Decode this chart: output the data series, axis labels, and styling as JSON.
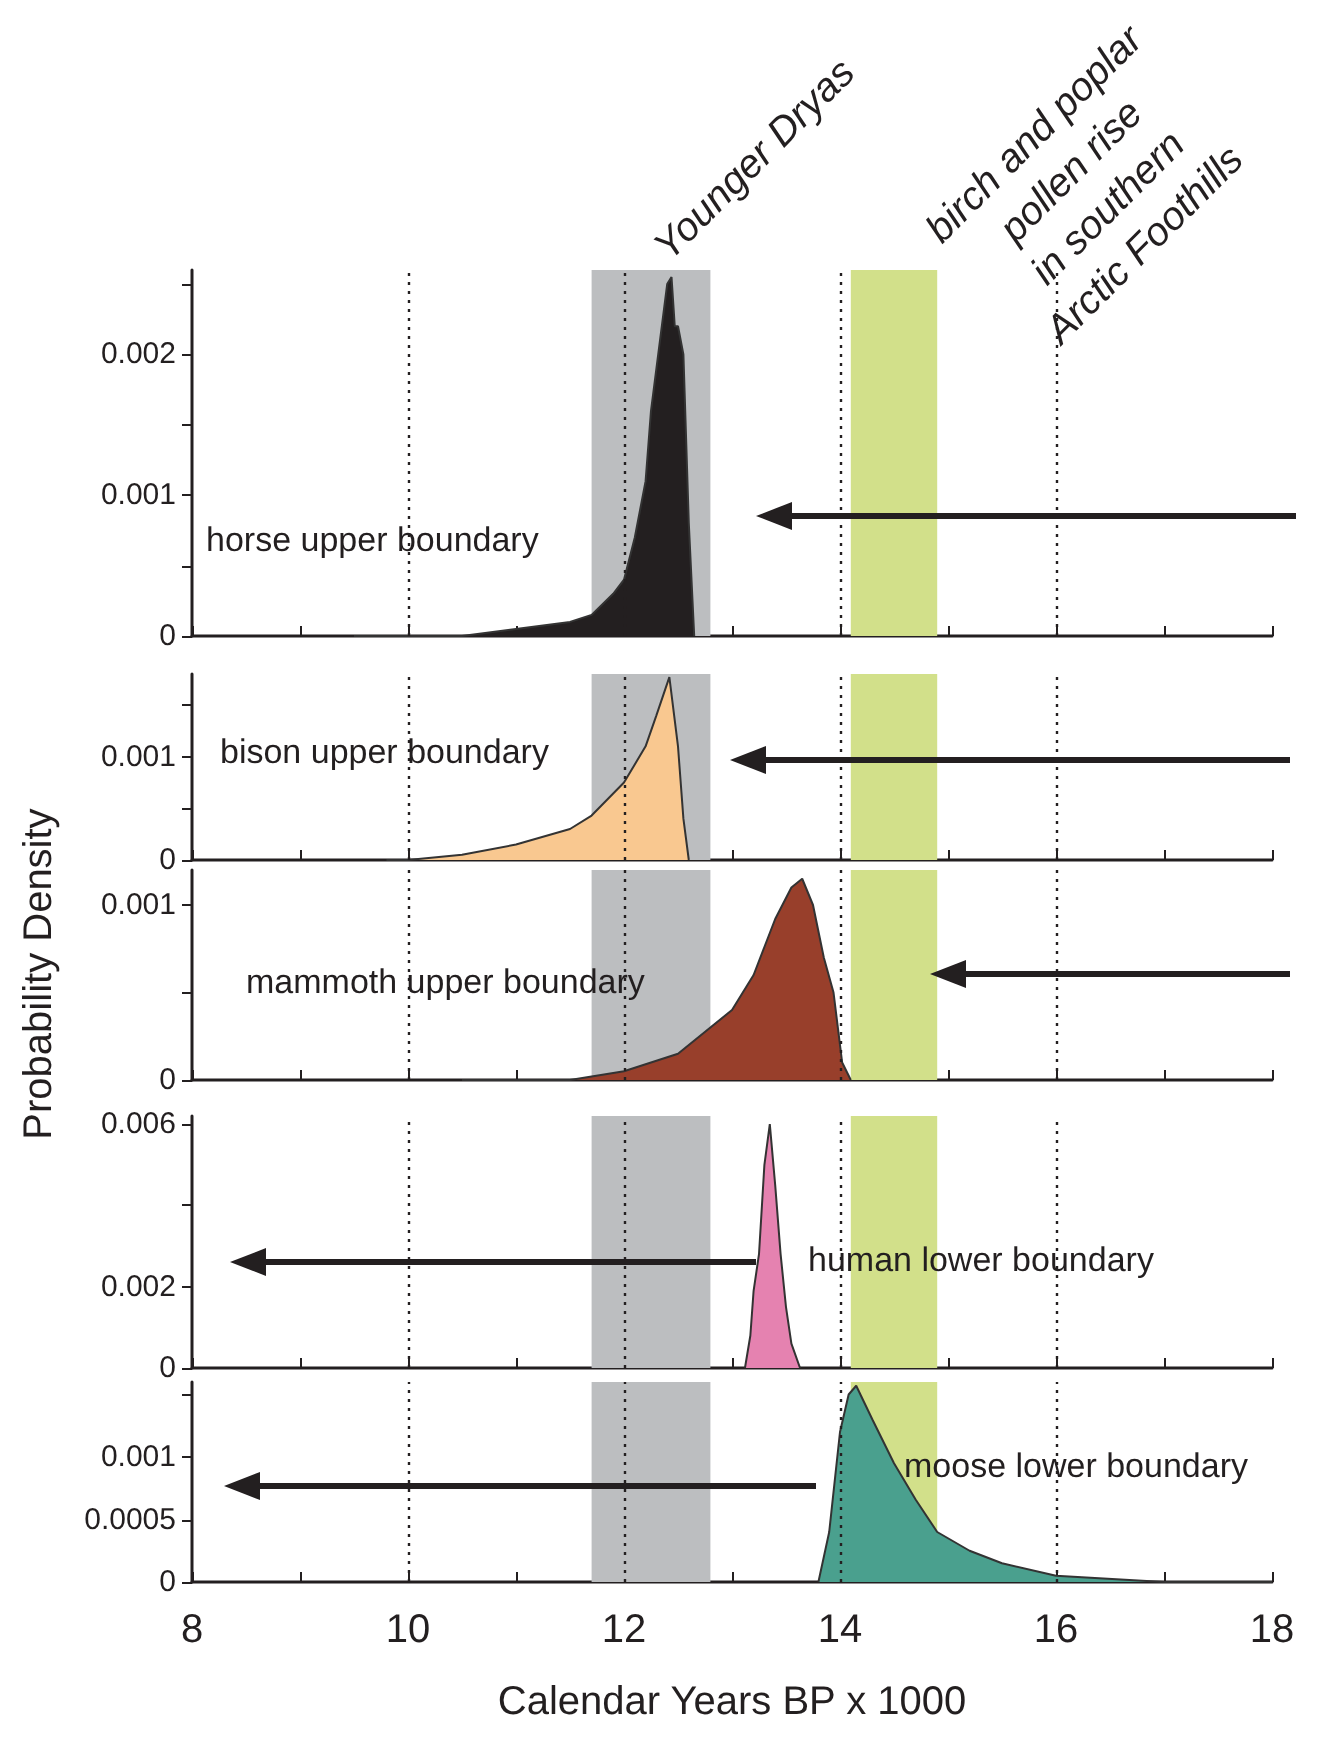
{
  "chart_data": [
    {
      "type": "area",
      "series": [
        {
          "name": "horse upper boundary",
          "color": "#231f20",
          "x": [
            9.5,
            10,
            10.5,
            11,
            11.5,
            11.7,
            11.9,
            12,
            12.1,
            12.2,
            12.25,
            12.3,
            12.35,
            12.4,
            12.44,
            12.47,
            12.5,
            12.55,
            12.6,
            12.65
          ],
          "values": [
            0,
            0,
            0,
            5e-05,
            0.0001,
            0.00015,
            0.0003,
            0.0004,
            0.0007,
            0.0011,
            0.0016,
            0.0019,
            0.0022,
            0.0025,
            0.00255,
            0.0022,
            0.0022,
            0.002,
            0.0008,
            0
          ]
        }
      ],
      "xlim": [
        8,
        18
      ],
      "xticks": [
        8,
        9,
        10,
        11,
        12,
        13,
        14,
        15,
        16,
        17,
        18
      ],
      "ylim": [
        0,
        0.0026
      ],
      "yticks": [
        0,
        {
          "value": 0.0005,
          "label": null
        },
        0.001,
        {
          "value": 0.0015,
          "label": null
        },
        0.002,
        {
          "value": 0.0025,
          "label": null
        }
      ],
      "tick_labels": "y",
      "bands": [
        {
          "axis": "x",
          "from": 11.7,
          "to": 12.8,
          "label": "Younger Dryas",
          "color": "#bcbec0"
        },
        {
          "axis": "x",
          "from": 14.1,
          "to": 14.9,
          "label": "birch and poplar\npollen rise\nin southern\nArctic Foothills",
          "color": "#d2e08a"
        }
      ],
      "ref_lines": [
        {
          "axis": "x",
          "value": 10,
          "line_style": "dotted"
        },
        {
          "axis": "x",
          "value": 12,
          "line_style": "dotted"
        },
        {
          "axis": "x",
          "value": 14,
          "line_style": "dotted"
        },
        {
          "axis": "x",
          "value": 16,
          "line_style": "dotted"
        }
      ]
    },
    {
      "type": "area",
      "series": [
        {
          "name": "bison upper boundary",
          "color": "#f9c890",
          "x": [
            9.8,
            10,
            10.5,
            11,
            11.5,
            11.7,
            12,
            12.2,
            12.3,
            12.42,
            12.5,
            12.55,
            12.6
          ],
          "values": [
            0,
            0,
            5e-05,
            0.00015,
            0.0003,
            0.00043,
            0.00075,
            0.0011,
            0.0014,
            0.00177,
            0.0011,
            0.0004,
            0
          ]
        }
      ],
      "xlim": [
        8,
        18
      ],
      "xticks": [
        8,
        9,
        10,
        11,
        12,
        13,
        14,
        15,
        16,
        17,
        18
      ],
      "ylim": [
        0,
        0.0018
      ],
      "yticks": [
        0,
        {
          "value": 0.0005,
          "label": null
        },
        0.001,
        {
          "value": 0.0015,
          "label": null
        }
      ],
      "tick_labels": "y",
      "bands": [
        {
          "axis": "x",
          "from": 11.7,
          "to": 12.8,
          "color": "#bcbec0"
        },
        {
          "axis": "x",
          "from": 14.1,
          "to": 14.9,
          "color": "#d2e08a"
        }
      ],
      "ref_lines": [
        {
          "axis": "x",
          "value": 10,
          "line_style": "dotted"
        },
        {
          "axis": "x",
          "value": 12,
          "line_style": "dotted"
        },
        {
          "axis": "x",
          "value": 14,
          "line_style": "dotted"
        },
        {
          "axis": "x",
          "value": 16,
          "line_style": "dotted"
        }
      ]
    },
    {
      "type": "area",
      "series": [
        {
          "name": "mammoth upper boundary",
          "color": "#983f2b",
          "x": [
            10.5,
            11,
            11.5,
            12,
            12.5,
            13,
            13.2,
            13.4,
            13.55,
            13.65,
            13.75,
            13.85,
            13.94,
            14.02,
            14.1
          ],
          "values": [
            0,
            0,
            0,
            5e-05,
            0.00015,
            0.0004,
            0.0006,
            0.00092,
            0.0011,
            0.00115,
            0.001,
            0.0007,
            0.0005,
            0.0001,
            0
          ]
        }
      ],
      "xlim": [
        8,
        18
      ],
      "xticks": [
        8,
        9,
        10,
        11,
        12,
        13,
        14,
        15,
        16,
        17,
        18
      ],
      "ylim": [
        0,
        0.0012
      ],
      "yticks": [
        0,
        {
          "value": 0.0005,
          "label": null
        },
        0.001
      ],
      "tick_labels": "y",
      "ylabel": "Probability Density",
      "bands": [
        {
          "axis": "x",
          "from": 11.7,
          "to": 12.8,
          "color": "#bcbec0"
        },
        {
          "axis": "x",
          "from": 14.1,
          "to": 14.9,
          "color": "#d2e08a"
        }
      ],
      "ref_lines": [
        {
          "axis": "x",
          "value": 10,
          "line_style": "dotted"
        },
        {
          "axis": "x",
          "value": 12,
          "line_style": "dotted"
        },
        {
          "axis": "x",
          "value": 14,
          "line_style": "dotted"
        },
        {
          "axis": "x",
          "value": 16,
          "line_style": "dotted"
        }
      ]
    },
    {
      "type": "area",
      "series": [
        {
          "name": "human lower boundary",
          "color": "#e582b0",
          "x": [
            13.12,
            13.17,
            13.2,
            13.25,
            13.3,
            13.35,
            13.4,
            13.45,
            13.5,
            13.55,
            13.63
          ],
          "values": [
            0,
            0.0008,
            0.0019,
            0.0028,
            0.005,
            0.006,
            0.0045,
            0.0028,
            0.0015,
            0.0006,
            0
          ]
        }
      ],
      "xlim": [
        8,
        18
      ],
      "xticks": [
        8,
        9,
        10,
        11,
        12,
        13,
        14,
        15,
        16,
        17,
        18
      ],
      "ylim": [
        0,
        0.0062
      ],
      "yticks": [
        0,
        0.002,
        {
          "value": 0.004,
          "label": null
        },
        0.006
      ],
      "tick_labels": "y",
      "bands": [
        {
          "axis": "x",
          "from": 11.7,
          "to": 12.8,
          "color": "#bcbec0"
        },
        {
          "axis": "x",
          "from": 14.1,
          "to": 14.9,
          "color": "#d2e08a"
        }
      ],
      "ref_lines": [
        {
          "axis": "x",
          "value": 10,
          "line_style": "dotted"
        },
        {
          "axis": "x",
          "value": 12,
          "line_style": "dotted"
        },
        {
          "axis": "x",
          "value": 14,
          "line_style": "dotted"
        },
        {
          "axis": "x",
          "value": 16,
          "line_style": "dotted"
        }
      ]
    },
    {
      "type": "area",
      "series": [
        {
          "name": "moose lower boundary",
          "color": "#4aa08e",
          "x": [
            13.8,
            13.9,
            14,
            14.08,
            14.15,
            14.3,
            14.5,
            14.7,
            14.9,
            15.2,
            15.5,
            16,
            17,
            18
          ],
          "values": [
            0,
            0.0004,
            0.0012,
            0.0015,
            0.00157,
            0.0013,
            0.00095,
            0.00066,
            0.0004,
            0.00025,
            0.00015,
            5e-05,
            0,
            0
          ]
        }
      ],
      "xlim": [
        8,
        18
      ],
      "xticks": [
        8,
        {
          "value": 9,
          "label": null
        },
        10,
        {
          "value": 11,
          "label": null
        },
        12,
        {
          "value": 13,
          "label": null
        },
        14,
        {
          "value": 15,
          "label": null
        },
        16,
        {
          "value": 17,
          "label": null
        },
        18
      ],
      "ylim": [
        0,
        0.0016
      ],
      "yticks": [
        0,
        0.0005,
        0.001,
        {
          "value": 0.0015,
          "label": null
        }
      ],
      "xlabel": "Calendar Years BP x 1000",
      "bands": [
        {
          "axis": "x",
          "from": 11.7,
          "to": 12.8,
          "color": "#bcbec0"
        },
        {
          "axis": "x",
          "from": 14.1,
          "to": 14.9,
          "color": "#d2e08a"
        }
      ],
      "ref_lines": [
        {
          "axis": "x",
          "value": 10,
          "line_style": "dotted"
        },
        {
          "axis": "x",
          "value": 12,
          "line_style": "dotted"
        },
        {
          "axis": "x",
          "value": 14,
          "line_style": "dotted"
        },
        {
          "axis": "x",
          "value": 16,
          "line_style": "dotted"
        }
      ]
    }
  ]
}
